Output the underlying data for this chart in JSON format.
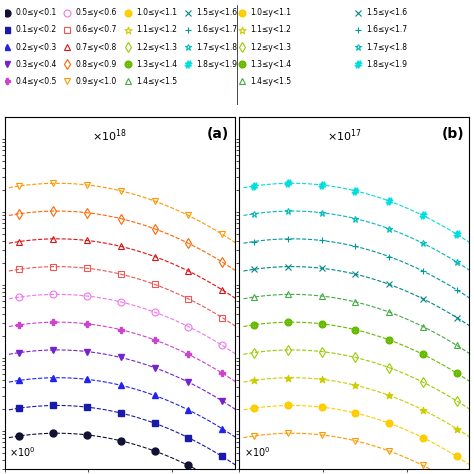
{
  "title_a": "(a)",
  "title_b": "(b)",
  "scale_a": "×10$^{18}$",
  "scale_b": "×10$^{17}$",
  "scale_bottom": "×10$^{0}$",
  "rapidity_bins": [
    "0.0 ≤ y < 0.1",
    "0.1 ≤ y < 0.2",
    "0.2 ≤ y < 0.3",
    "0.3 ≤ y < 0.4",
    "0.4 ≤ y < 0.5",
    "0.5 ≤ y < 0.6",
    "0.6 ≤ y < 0.7",
    "0.7 ≤ y < 0.8",
    "0.8 ≤ y < 0.9",
    "0.9 ≤ y < 1.0",
    "1.0 ≤ y < 1.1",
    "1.1 ≤ y < 1.2",
    "1.2 ≤ y < 1.3",
    "1.3 ≤ y < 1.4",
    "1.4 ≤ y < 1.5",
    "1.5 ≤ y < 1.6",
    "1.6 ≤ y < 1.7",
    "1.7 ≤ y < 1.8",
    "1.8 ≤ y < 1.9"
  ],
  "colors": [
    "#000000",
    "#00008B",
    "#0000FF",
    "#6A0DAD",
    "#CC00CC",
    "#FF00FF",
    "#FF4444",
    "#FF0000",
    "#FF6600",
    "#FF8C00",
    "#FFD700",
    "#CCCC00",
    "#AACC00",
    "#88BB00",
    "#44AA44",
    "#008866",
    "#009999",
    "#00BBBB",
    "#00CCCC"
  ],
  "markers_left": [
    "o",
    "s",
    "^",
    "v",
    "P",
    "o",
    "s",
    "^",
    "v",
    "v"
  ],
  "markers_right": [
    "$\\oplus$",
    "$\\bigstar$",
    "$+$",
    "$\\times$",
    "$\\triangle$",
    "$\\oplus$",
    "$\\diamond$",
    "$\\bigstar$",
    "$+$",
    "$\\times$",
    "$\\triangle$",
    "$\\oplus$",
    "$\\diamond$",
    "$\\bigstar$",
    "$+$",
    "$\\times$",
    "$\\triangle$",
    "$\\bigstar$",
    "$\\#$"
  ],
  "background_color": "#ffffff"
}
